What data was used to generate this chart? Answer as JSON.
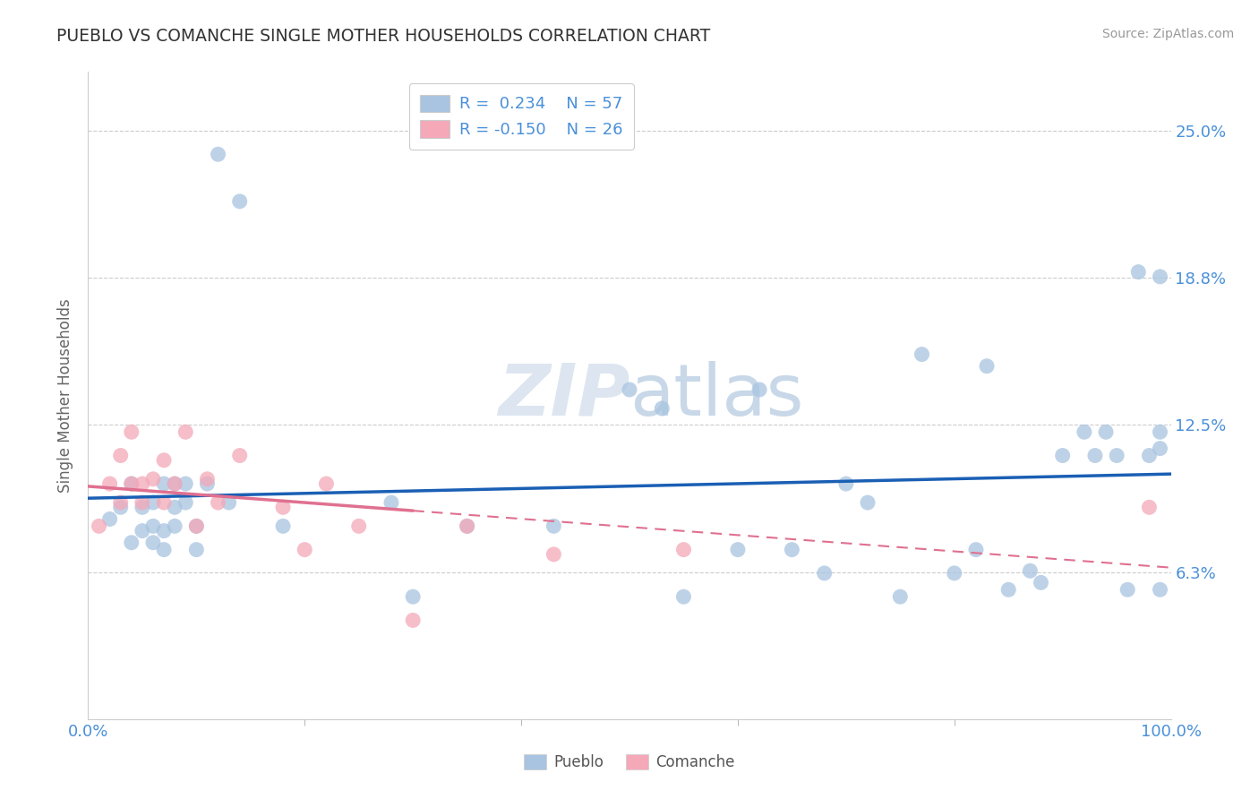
{
  "title": "PUEBLO VS COMANCHE SINGLE MOTHER HOUSEHOLDS CORRELATION CHART",
  "source": "Source: ZipAtlas.com",
  "ylabel": "Single Mother Households",
  "ytick_labels": [
    "6.3%",
    "12.5%",
    "18.8%",
    "25.0%"
  ],
  "ytick_values": [
    0.0625,
    0.125,
    0.1875,
    0.25
  ],
  "xmin": 0.0,
  "xmax": 1.0,
  "ymin": 0.0,
  "ymax": 0.275,
  "legend_r_pueblo": "R =  0.234",
  "legend_n_pueblo": "N = 57",
  "legend_r_comanche": "R = -0.150",
  "legend_n_comanche": "N = 26",
  "pueblo_color": "#a8c4e0",
  "comanche_color": "#f4a8b8",
  "pueblo_line_color": "#1a5fb4",
  "comanche_line_color": "#e07090",
  "background_color": "#ffffff",
  "watermark_text": "ZIPatlas",
  "watermark_color": "#dde6f0",
  "pueblo_scatter_x": [
    0.02,
    0.03,
    0.04,
    0.04,
    0.05,
    0.05,
    0.06,
    0.06,
    0.06,
    0.07,
    0.07,
    0.07,
    0.08,
    0.08,
    0.08,
    0.09,
    0.09,
    0.1,
    0.1,
    0.11,
    0.12,
    0.13,
    0.14,
    0.18,
    0.28,
    0.3,
    0.35,
    0.43,
    0.5,
    0.53,
    0.55,
    0.6,
    0.62,
    0.65,
    0.68,
    0.7,
    0.72,
    0.75,
    0.8,
    0.82,
    0.85,
    0.87,
    0.88,
    0.9,
    0.92,
    0.93,
    0.94,
    0.95,
    0.96,
    0.97,
    0.98,
    0.99,
    0.99,
    0.99,
    0.83,
    0.77,
    0.99
  ],
  "pueblo_scatter_y": [
    0.085,
    0.09,
    0.075,
    0.1,
    0.08,
    0.09,
    0.075,
    0.082,
    0.092,
    0.1,
    0.08,
    0.072,
    0.09,
    0.1,
    0.082,
    0.092,
    0.1,
    0.082,
    0.072,
    0.1,
    0.24,
    0.092,
    0.22,
    0.082,
    0.092,
    0.052,
    0.082,
    0.082,
    0.14,
    0.132,
    0.052,
    0.072,
    0.14,
    0.072,
    0.062,
    0.1,
    0.092,
    0.052,
    0.062,
    0.072,
    0.055,
    0.063,
    0.058,
    0.112,
    0.122,
    0.112,
    0.122,
    0.112,
    0.055,
    0.19,
    0.112,
    0.122,
    0.055,
    0.115,
    0.15,
    0.155,
    0.188
  ],
  "comanche_scatter_x": [
    0.01,
    0.02,
    0.03,
    0.03,
    0.04,
    0.04,
    0.05,
    0.05,
    0.06,
    0.07,
    0.07,
    0.08,
    0.09,
    0.1,
    0.11,
    0.12,
    0.14,
    0.18,
    0.2,
    0.22,
    0.25,
    0.3,
    0.35,
    0.43,
    0.55,
    0.98
  ],
  "comanche_scatter_y": [
    0.082,
    0.1,
    0.112,
    0.092,
    0.1,
    0.122,
    0.092,
    0.1,
    0.102,
    0.11,
    0.092,
    0.1,
    0.122,
    0.082,
    0.102,
    0.092,
    0.112,
    0.09,
    0.072,
    0.1,
    0.082,
    0.042,
    0.082,
    0.07,
    0.072,
    0.09
  ]
}
